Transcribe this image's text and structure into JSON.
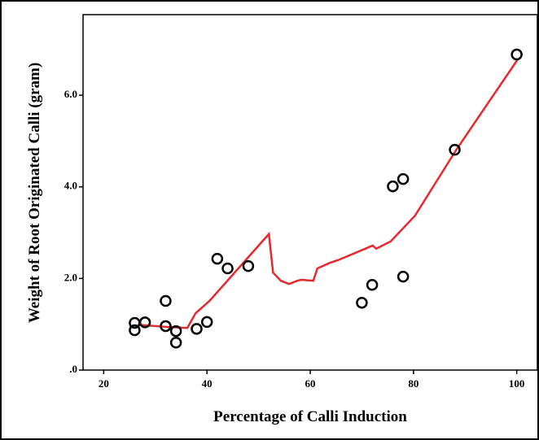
{
  "chart_data": {
    "type": "scatter",
    "x_label": "Percentage of Calli Induction",
    "y_label": "Weight of Root Originated Calli (gram)",
    "xlim": [
      16,
      104
    ],
    "ylim": [
      0,
      7.76
    ],
    "xticks": [
      20,
      40,
      60,
      80,
      100
    ],
    "yticks": [
      {
        "value": 0,
        "label": ".0"
      },
      {
        "value": 2,
        "label": "2.0"
      },
      {
        "value": 4,
        "label": "4.0"
      },
      {
        "value": 6,
        "label": "6.0"
      }
    ],
    "points": {
      "color": "#000000",
      "x": [
        26,
        26,
        28,
        32,
        32,
        34,
        34,
        38,
        40,
        42,
        44,
        48,
        70,
        72,
        76,
        78,
        78,
        88,
        100
      ],
      "y": [
        1.03,
        0.87,
        1.04,
        1.51,
        0.96,
        0.85,
        0.6,
        0.9,
        1.05,
        2.43,
        2.22,
        2.27,
        1.47,
        1.86,
        4.01,
        4.17,
        2.04,
        4.81,
        6.89
      ]
    },
    "fit_line": {
      "color": "#e8272a",
      "x": [
        26.6,
        32.4,
        36.2,
        37.8,
        40.5,
        52,
        52.8,
        54.3,
        55.9,
        57.5,
        58.3,
        60.6,
        61.4,
        63.8,
        65.4,
        70.9,
        72.1,
        72.8,
        75.6,
        80.3,
        88.3,
        100.3
      ],
      "y": [
        0.99,
        0.94,
        0.92,
        1.24,
        1.51,
        2.97,
        2.13,
        1.95,
        1.88,
        1.95,
        1.97,
        1.95,
        2.22,
        2.34,
        2.4,
        2.66,
        2.72,
        2.65,
        2.81,
        3.37,
        4.81,
        6.8
      ]
    }
  }
}
